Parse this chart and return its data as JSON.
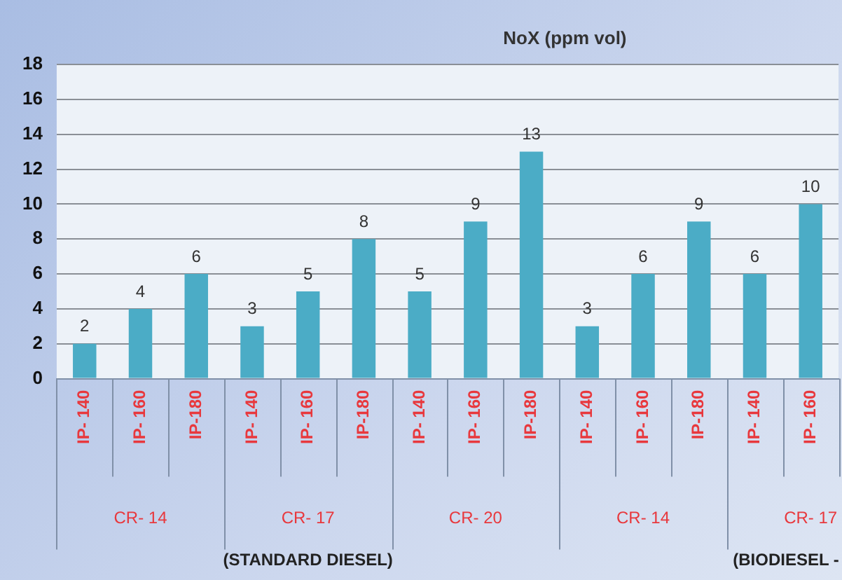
{
  "chart_data": {
    "type": "bar",
    "title": "NoX (ppm vol)",
    "categories": [
      "IP- 140",
      "IP- 160",
      "IP-180",
      "IP- 140",
      "IP- 160",
      "IP-180",
      "IP- 140",
      "IP- 160",
      "IP-180",
      "IP- 140",
      "IP- 160",
      "IP-180",
      "IP- 140",
      "IP- 160"
    ],
    "values": [
      2,
      4,
      6,
      3,
      5,
      8,
      5,
      9,
      13,
      3,
      6,
      9,
      6,
      10
    ],
    "color": "#4bacc6",
    "ylim": [
      0,
      18
    ],
    "yticks": [
      0,
      2,
      4,
      6,
      8,
      10,
      12,
      14,
      16,
      18
    ],
    "grid": "y",
    "legend": false,
    "data_labels": true,
    "annotations": [
      "CR- 14",
      "CR- 17",
      "CR- 20",
      "CR- 14",
      "CR- 17",
      "(STANDARD DIESEL)",
      "(BIODIESEL -"
    ]
  }
}
